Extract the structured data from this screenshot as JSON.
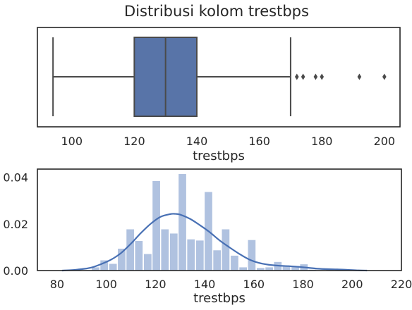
{
  "title": "Distribusi kolom trestbps",
  "chart_data": [
    {
      "type": "boxplot",
      "xlabel": "trestbps",
      "xlim": [
        89,
        205
      ],
      "xticks": [
        100,
        120,
        140,
        160,
        180,
        200
      ],
      "whisker_low": 94,
      "q1": 120,
      "median": 130,
      "q3": 140,
      "whisker_high": 170,
      "outliers": [
        172,
        174,
        178,
        180,
        192,
        200
      ],
      "box_color": "#5874a8",
      "line_color": "#4a4a4a"
    },
    {
      "type": "histogram",
      "xlabel": "trestbps",
      "xlim": [
        72,
        220
      ],
      "ylim": [
        0,
        0.0435
      ],
      "xticks": [
        80,
        100,
        120,
        140,
        160,
        180,
        200,
        220
      ],
      "yticks": [
        0,
        0.02,
        0.04
      ],
      "ytick_labels": [
        "0.00",
        "0.02",
        "0.04"
      ],
      "bin_width": 3.53,
      "bins": [
        {
          "x0": 94.0,
          "density": 0.0015
        },
        {
          "x0": 97.5,
          "density": 0.0045
        },
        {
          "x0": 101.1,
          "density": 0.003
        },
        {
          "x0": 104.6,
          "density": 0.0095
        },
        {
          "x0": 108.1,
          "density": 0.0178
        },
        {
          "x0": 111.6,
          "density": 0.0128
        },
        {
          "x0": 115.2,
          "density": 0.0072
        },
        {
          "x0": 118.7,
          "density": 0.0385
        },
        {
          "x0": 122.2,
          "density": 0.0178
        },
        {
          "x0": 125.8,
          "density": 0.016
        },
        {
          "x0": 129.3,
          "density": 0.0415
        },
        {
          "x0": 132.8,
          "density": 0.0135
        },
        {
          "x0": 136.4,
          "density": 0.013
        },
        {
          "x0": 139.9,
          "density": 0.0338
        },
        {
          "x0": 143.4,
          "density": 0.0088
        },
        {
          "x0": 146.9,
          "density": 0.0178
        },
        {
          "x0": 150.5,
          "density": 0.0065
        },
        {
          "x0": 154.0,
          "density": 0.0015
        },
        {
          "x0": 157.5,
          "density": 0.0132
        },
        {
          "x0": 161.1,
          "density": 0.0012
        },
        {
          "x0": 164.6,
          "density": 0.0015
        },
        {
          "x0": 168.1,
          "density": 0.0038
        },
        {
          "x0": 171.6,
          "density": 0.0022
        },
        {
          "x0": 175.2,
          "density": 0.002
        },
        {
          "x0": 178.7,
          "density": 0.0028
        },
        {
          "x0": 182.2,
          "density": 0.0005
        },
        {
          "x0": 185.8,
          "density": 0.0003
        },
        {
          "x0": 189.3,
          "density": 0.0006
        },
        {
          "x0": 192.8,
          "density": 0.0005
        },
        {
          "x0": 196.4,
          "density": 0.0004
        }
      ],
      "kde": {
        "x": [
          82,
          86,
          90,
          94,
          98,
          102,
          106,
          110,
          114,
          118,
          122,
          126,
          128,
          130,
          134,
          138,
          142,
          146,
          150,
          154,
          158,
          162,
          166,
          170,
          174,
          178,
          182,
          186,
          190,
          194,
          198,
          202,
          206
        ],
        "y": [
          0.0,
          0.0002,
          0.0006,
          0.0013,
          0.0028,
          0.0047,
          0.0075,
          0.0115,
          0.016,
          0.02,
          0.023,
          0.0242,
          0.0243,
          0.024,
          0.0222,
          0.0195,
          0.0165,
          0.013,
          0.01,
          0.0072,
          0.0048,
          0.0033,
          0.0025,
          0.0021,
          0.0019,
          0.0016,
          0.0012,
          0.0008,
          0.0006,
          0.0005,
          0.0003,
          0.0001,
          0.0
        ]
      },
      "bar_color": "#b0c2e0",
      "line_color": "#4870b4"
    }
  ]
}
